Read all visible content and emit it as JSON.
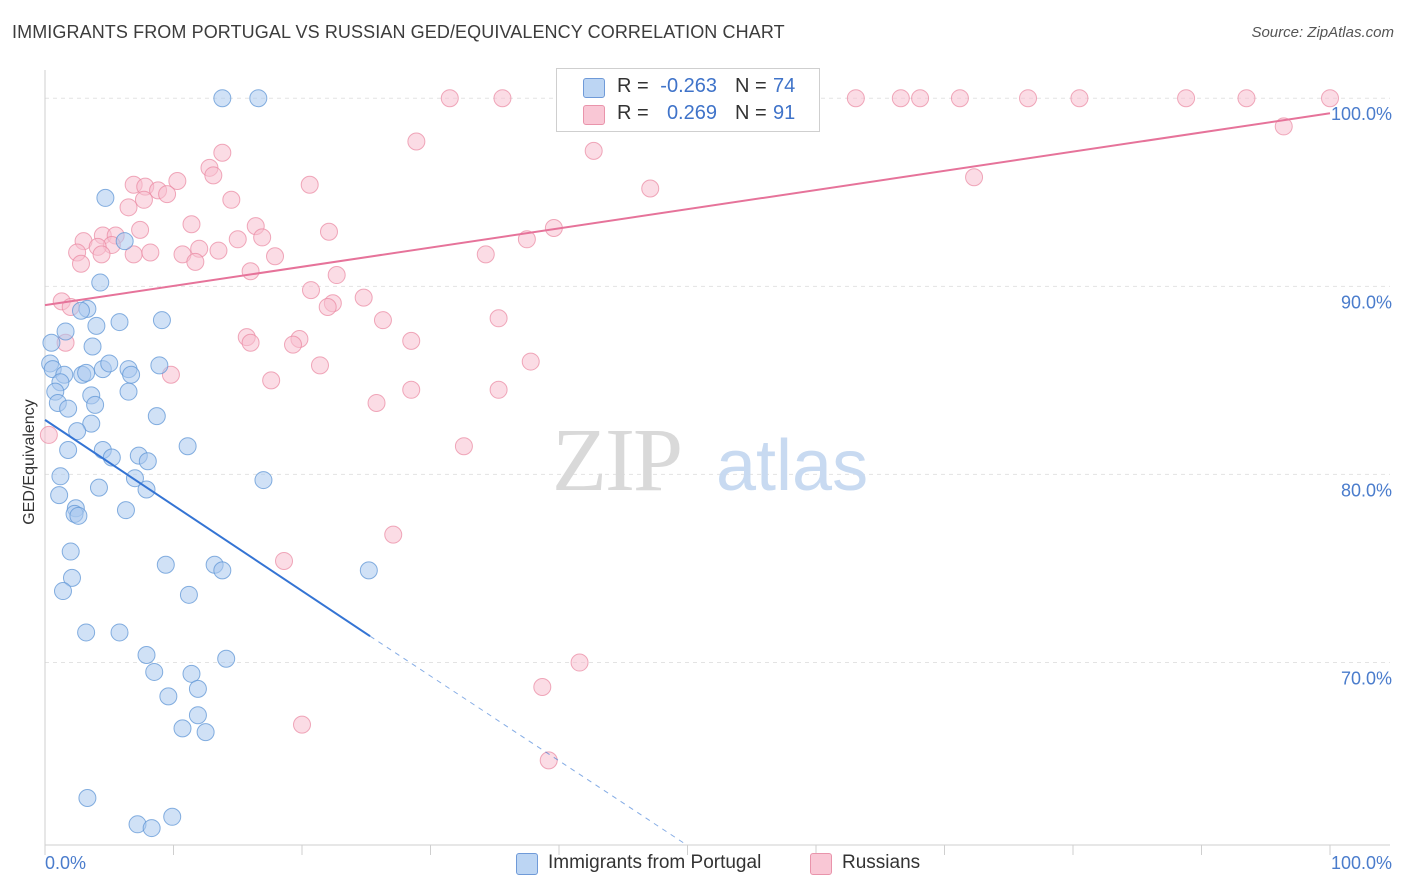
{
  "header": {
    "title": "IMMIGRANTS FROM PORTUGAL VS RUSSIAN GED/EQUIVALENCY CORRELATION CHART",
    "source": "Source: ZipAtlas.com"
  },
  "watermark": {
    "zip": "ZIP",
    "atlas": "atlas"
  },
  "legend_stats": {
    "r_label": "R =",
    "n_label": "N =",
    "series": [
      {
        "r": "-0.263",
        "n": "74"
      },
      {
        "r": "0.269",
        "n": "91"
      }
    ]
  },
  "legend_bottom": {
    "items": [
      {
        "label": "Immigrants from Portugal"
      },
      {
        "label": "Russians"
      }
    ]
  },
  "colors": {
    "blue_fill": "#a9c8ef",
    "blue_stroke": "#5f95d6",
    "blue_line": "#3474d4",
    "pink_fill": "#f7bfd0",
    "pink_stroke": "#e9869f",
    "pink_line": "#e6739a",
    "axis_text": "#4a7ccc",
    "grid": "#e3e3e3"
  },
  "chart_data": {
    "type": "scatter",
    "title": "IMMIGRANTS FROM PORTUGAL VS RUSSIAN GED/EQUIVALENCY CORRELATION CHART",
    "xlabel": "",
    "ylabel": "GED/Equivalency",
    "xlim": [
      0,
      100
    ],
    "ylim": [
      60.3,
      101.5
    ],
    "x_tick_labels": [
      {
        "value": 0,
        "label": "0.0%"
      },
      {
        "value": 100,
        "label": "100.0%"
      }
    ],
    "y_tick_labels": [
      {
        "value": 100,
        "label": "100.0%"
      },
      {
        "value": 90,
        "label": "90.0%"
      },
      {
        "value": 80,
        "label": "80.0%"
      },
      {
        "value": 70,
        "label": "70.0%"
      }
    ],
    "grid": true,
    "legend_position": "top-center",
    "series": [
      {
        "name": "Immigrants from Portugal",
        "color": "#a9c8ef",
        "points": [
          [
            13.8,
            100.0
          ],
          [
            16.6,
            100.0
          ],
          [
            4.7,
            94.7
          ],
          [
            6.2,
            92.4
          ],
          [
            4.3,
            90.2
          ],
          [
            3.3,
            88.8
          ],
          [
            2.8,
            88.7
          ],
          [
            5.8,
            88.1
          ],
          [
            9.1,
            88.2
          ],
          [
            4.0,
            87.9
          ],
          [
            0.5,
            87.0
          ],
          [
            1.6,
            87.6
          ],
          [
            3.7,
            86.8
          ],
          [
            0.4,
            85.9
          ],
          [
            0.6,
            85.6
          ],
          [
            1.5,
            85.3
          ],
          [
            1.2,
            84.9
          ],
          [
            2.9,
            85.3
          ],
          [
            3.2,
            85.4
          ],
          [
            4.5,
            85.6
          ],
          [
            5.0,
            85.9
          ],
          [
            6.5,
            85.6
          ],
          [
            6.7,
            85.3
          ],
          [
            8.9,
            85.8
          ],
          [
            0.8,
            84.4
          ],
          [
            1.0,
            83.8
          ],
          [
            3.6,
            84.2
          ],
          [
            3.9,
            83.7
          ],
          [
            6.5,
            84.4
          ],
          [
            1.8,
            83.5
          ],
          [
            8.7,
            83.1
          ],
          [
            3.6,
            82.7
          ],
          [
            2.5,
            82.3
          ],
          [
            1.8,
            81.3
          ],
          [
            4.5,
            81.3
          ],
          [
            5.2,
            80.9
          ],
          [
            7.3,
            81.0
          ],
          [
            8.0,
            80.7
          ],
          [
            11.1,
            81.5
          ],
          [
            1.2,
            79.9
          ],
          [
            7.0,
            79.8
          ],
          [
            17.0,
            79.7
          ],
          [
            4.2,
            79.3
          ],
          [
            7.9,
            79.2
          ],
          [
            1.1,
            78.9
          ],
          [
            2.4,
            78.2
          ],
          [
            2.3,
            77.9
          ],
          [
            2.6,
            77.8
          ],
          [
            6.3,
            78.1
          ],
          [
            2.0,
            75.9
          ],
          [
            9.4,
            75.2
          ],
          [
            13.2,
            75.2
          ],
          [
            13.8,
            74.9
          ],
          [
            25.2,
            74.9
          ],
          [
            2.1,
            74.5
          ],
          [
            1.4,
            73.8
          ],
          [
            11.2,
            73.6
          ],
          [
            3.2,
            71.6
          ],
          [
            5.8,
            71.6
          ],
          [
            7.9,
            70.4
          ],
          [
            14.1,
            70.2
          ],
          [
            8.5,
            69.5
          ],
          [
            11.4,
            69.4
          ],
          [
            11.9,
            68.6
          ],
          [
            9.6,
            68.2
          ],
          [
            11.9,
            67.2
          ],
          [
            10.7,
            66.5
          ],
          [
            12.5,
            66.3
          ],
          [
            3.3,
            62.8
          ],
          [
            7.2,
            61.4
          ],
          [
            8.3,
            61.2
          ],
          [
            9.9,
            61.8
          ]
        ],
        "trend": {
          "x": [
            0,
            25.3
          ],
          "y": [
            82.9,
            71.4
          ]
        },
        "trend_dashed_extension": {
          "x": [
            25.3,
            62.6
          ],
          "y": [
            71.4,
            54.6
          ]
        }
      },
      {
        "name": "Russians",
        "color": "#f7bfd0",
        "points": [
          [
            31.5,
            100.0
          ],
          [
            35.6,
            100.0
          ],
          [
            43.7,
            100.0
          ],
          [
            44.3,
            100.0
          ],
          [
            46.9,
            100.0
          ],
          [
            52.7,
            100.0
          ],
          [
            57.8,
            100.0
          ],
          [
            63.1,
            100.0
          ],
          [
            66.6,
            100.0
          ],
          [
            68.1,
            100.0
          ],
          [
            71.2,
            100.0
          ],
          [
            76.5,
            100.0
          ],
          [
            80.5,
            100.0
          ],
          [
            88.8,
            100.0
          ],
          [
            93.5,
            100.0
          ],
          [
            100.0,
            100.0
          ],
          [
            96.4,
            98.5
          ],
          [
            28.9,
            97.7
          ],
          [
            42.7,
            97.2
          ],
          [
            13.8,
            97.1
          ],
          [
            12.8,
            96.3
          ],
          [
            13.1,
            95.9
          ],
          [
            72.3,
            95.8
          ],
          [
            10.3,
            95.6
          ],
          [
            6.9,
            95.4
          ],
          [
            7.8,
            95.3
          ],
          [
            8.8,
            95.1
          ],
          [
            9.5,
            94.9
          ],
          [
            20.6,
            95.4
          ],
          [
            47.1,
            95.2
          ],
          [
            14.5,
            94.6
          ],
          [
            7.7,
            94.6
          ],
          [
            6.5,
            94.2
          ],
          [
            11.4,
            93.3
          ],
          [
            16.4,
            93.2
          ],
          [
            39.6,
            93.1
          ],
          [
            22.1,
            92.9
          ],
          [
            4.5,
            92.7
          ],
          [
            5.5,
            92.7
          ],
          [
            7.4,
            93.0
          ],
          [
            3.0,
            92.4
          ],
          [
            5.2,
            92.2
          ],
          [
            15.0,
            92.5
          ],
          [
            16.9,
            92.6
          ],
          [
            4.1,
            92.1
          ],
          [
            13.5,
            91.9
          ],
          [
            2.5,
            91.8
          ],
          [
            4.4,
            91.7
          ],
          [
            6.9,
            91.7
          ],
          [
            8.2,
            91.8
          ],
          [
            10.7,
            91.7
          ],
          [
            12.0,
            92.0
          ],
          [
            37.5,
            92.5
          ],
          [
            17.9,
            91.6
          ],
          [
            34.3,
            91.7
          ],
          [
            2.8,
            91.2
          ],
          [
            11.7,
            91.3
          ],
          [
            16.0,
            90.8
          ],
          [
            22.7,
            90.6
          ],
          [
            20.7,
            89.8
          ],
          [
            24.8,
            89.4
          ],
          [
            22.4,
            89.1
          ],
          [
            22.0,
            88.9
          ],
          [
            1.3,
            89.2
          ],
          [
            2.0,
            88.9
          ],
          [
            26.3,
            88.2
          ],
          [
            35.3,
            88.3
          ],
          [
            15.7,
            87.3
          ],
          [
            19.8,
            87.2
          ],
          [
            28.5,
            87.1
          ],
          [
            1.6,
            87.0
          ],
          [
            16.0,
            87.0
          ],
          [
            19.3,
            86.9
          ],
          [
            21.4,
            85.8
          ],
          [
            37.8,
            86.0
          ],
          [
            9.8,
            85.3
          ],
          [
            17.6,
            85.0
          ],
          [
            25.8,
            83.8
          ],
          [
            28.5,
            84.5
          ],
          [
            35.3,
            84.5
          ],
          [
            32.6,
            81.5
          ],
          [
            27.1,
            76.8
          ],
          [
            18.6,
            75.4
          ],
          [
            38.7,
            68.7
          ],
          [
            20.0,
            66.7
          ],
          [
            41.6,
            70.0
          ],
          [
            39.2,
            64.8
          ],
          [
            0.3,
            82.1
          ]
        ],
        "trend": {
          "x": [
            0,
            100
          ],
          "y": [
            89.0,
            99.2
          ]
        }
      }
    ]
  }
}
